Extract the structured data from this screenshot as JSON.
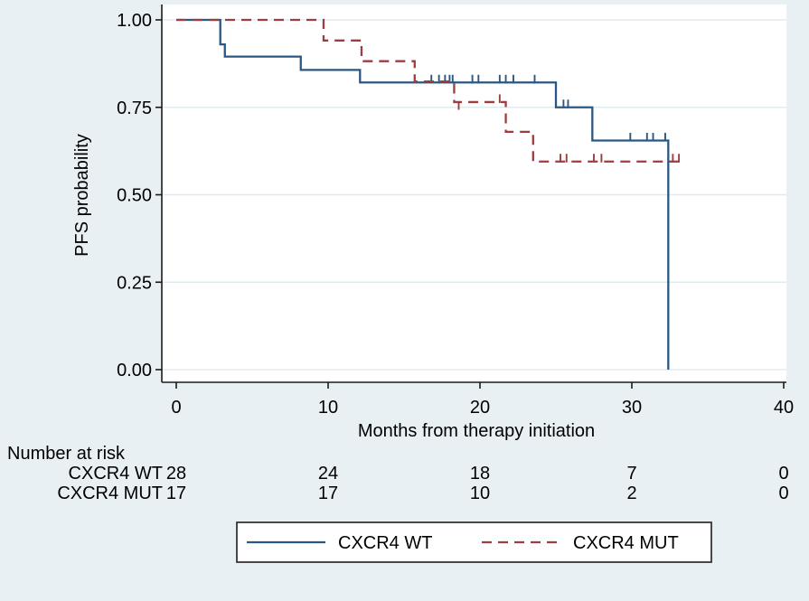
{
  "figure": {
    "background_color": "#e9f0f3",
    "plot_background_color": "#ffffff",
    "grid_color": "#e0ebee",
    "axis_color": "#1a1a1a",
    "text_color": "#000000"
  },
  "chart_data": {
    "type": "line",
    "subtype": "kaplan-meier-step",
    "title": "",
    "xlabel": "Months from therapy initiation",
    "ylabel": "PFS probability",
    "xlim": [
      0,
      40
    ],
    "ylim": [
      0.0,
      1.0
    ],
    "xticks": [
      0,
      10,
      20,
      30,
      40
    ],
    "yticks": [
      0.0,
      0.25,
      0.5,
      0.75,
      1.0
    ],
    "ytick_labels": [
      "0.00",
      "0.25",
      "0.50",
      "0.75",
      "1.00"
    ],
    "grid": "horizontal",
    "legend_position": "bottom-center",
    "series": [
      {
        "name": "CXCR4 WT",
        "color": "#2a5784",
        "line_style": "solid",
        "steps": [
          [
            0,
            1.0
          ],
          [
            2.9,
            0.93
          ],
          [
            3.2,
            0.895
          ],
          [
            8.2,
            0.857
          ],
          [
            12.1,
            0.821
          ],
          [
            25.0,
            0.75
          ],
          [
            27.4,
            0.655
          ],
          [
            32.4,
            0.0
          ]
        ],
        "end_month": 32.4,
        "censor_marks": [
          [
            16.8,
            0.821,
            "up"
          ],
          [
            17.3,
            0.821,
            "up"
          ],
          [
            17.7,
            0.821,
            "up"
          ],
          [
            18.0,
            0.821,
            "up"
          ],
          [
            18.2,
            0.821,
            "up"
          ],
          [
            19.5,
            0.821,
            "up"
          ],
          [
            19.9,
            0.821,
            "up"
          ],
          [
            21.3,
            0.821,
            "up"
          ],
          [
            21.7,
            0.821,
            "up"
          ],
          [
            22.2,
            0.821,
            "up"
          ],
          [
            23.6,
            0.821,
            "up"
          ],
          [
            25.5,
            0.75,
            "up"
          ],
          [
            25.8,
            0.75,
            "up"
          ],
          [
            29.9,
            0.655,
            "up"
          ],
          [
            31.0,
            0.655,
            "up"
          ],
          [
            31.4,
            0.655,
            "up"
          ],
          [
            32.2,
            0.655,
            "up"
          ]
        ]
      },
      {
        "name": "CXCR4 MUT",
        "color": "#9e3c40",
        "line_style": "dashed",
        "steps": [
          [
            0,
            1.0
          ],
          [
            9.7,
            0.941
          ],
          [
            12.2,
            0.882
          ],
          [
            15.7,
            0.824
          ],
          [
            18.3,
            0.765
          ],
          [
            21.7,
            0.68
          ],
          [
            23.5,
            0.595
          ]
        ],
        "end_month": 33.2,
        "censor_marks": [
          [
            18.6,
            0.765,
            "down"
          ],
          [
            21.3,
            0.765,
            "up"
          ],
          [
            25.3,
            0.595,
            "up"
          ],
          [
            25.7,
            0.595,
            "up"
          ],
          [
            27.5,
            0.595,
            "up"
          ],
          [
            28.0,
            0.595,
            "up"
          ],
          [
            32.7,
            0.595,
            "up"
          ],
          [
            33.1,
            0.595,
            "up"
          ]
        ]
      }
    ],
    "risk_table": {
      "title": "Number at risk",
      "times": [
        0,
        10,
        20,
        30,
        40
      ],
      "rows": [
        {
          "label": "CXCR4 WT",
          "values": [
            "28",
            "24",
            "18",
            "7",
            "0"
          ]
        },
        {
          "label": "CXCR4 MUT",
          "values": [
            "17",
            "17",
            "10",
            "2",
            "0"
          ]
        }
      ]
    },
    "legend": [
      {
        "label": "CXCR4 WT",
        "style": "solid",
        "color": "#2a5784"
      },
      {
        "label": "CXCR4 MUT",
        "style": "dashed",
        "color": "#9e3c40"
      }
    ]
  }
}
